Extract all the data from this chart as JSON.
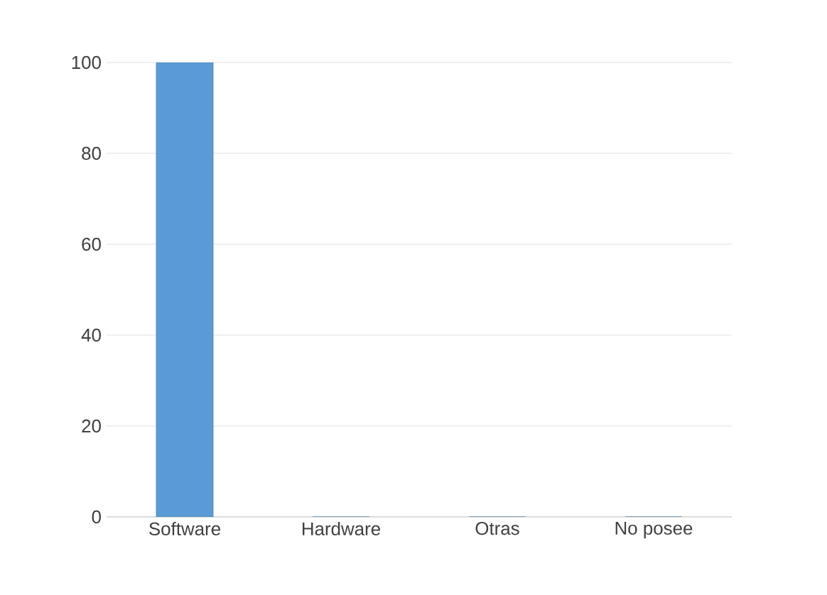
{
  "chart_data": {
    "type": "bar",
    "categories": [
      "Software",
      "Hardware",
      "Otras",
      "No posee"
    ],
    "values": [
      100,
      0,
      0,
      0
    ],
    "color": "#5b9bd5",
    "ylim": [
      0,
      100
    ],
    "yticks": [
      0,
      20,
      40,
      60,
      80,
      100
    ],
    "grid": "y"
  }
}
